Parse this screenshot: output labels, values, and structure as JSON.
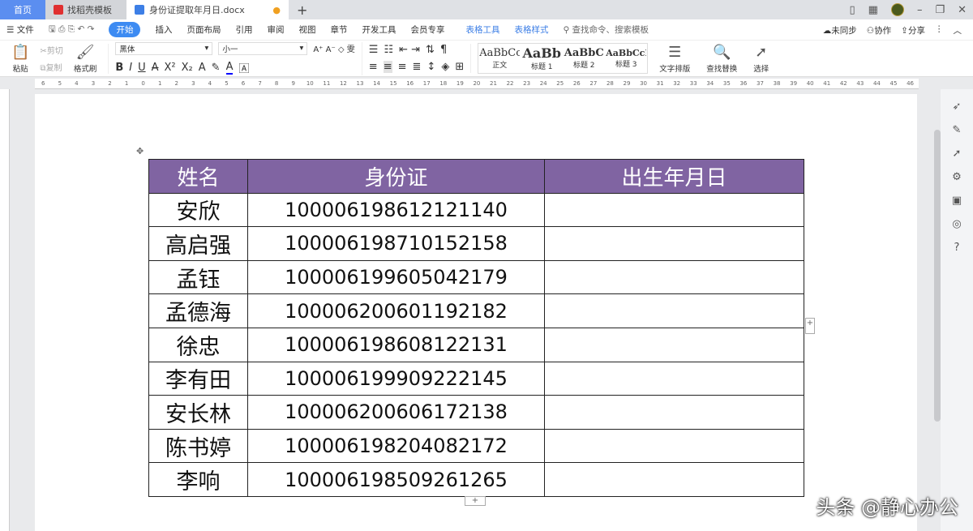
{
  "tabs": [
    {
      "label": "首页"
    },
    {
      "label": "找稻壳模板"
    },
    {
      "label": "身份证提取年月日.docx"
    }
  ],
  "menu": {
    "file": "文件",
    "items": [
      "开始",
      "插入",
      "页面布局",
      "引用",
      "审阅",
      "视图",
      "章节",
      "开发工具",
      "会员专享"
    ],
    "context": [
      "表格工具",
      "表格样式"
    ],
    "search": "查找命令、搜索模板",
    "sync": "未同步",
    "collab": "协作",
    "share": "分享"
  },
  "toolbar": {
    "paste": "粘贴",
    "cut": "剪切",
    "copy": "复制",
    "format_painter": "格式刷",
    "font": "黑体",
    "size": "小一",
    "styles": [
      {
        "preview": "AaBbCcDd",
        "label": "正文"
      },
      {
        "preview": "AaBb",
        "label": "标题 1"
      },
      {
        "preview": "AaBbC",
        "label": "标题 2"
      },
      {
        "preview": "AaBbCcD",
        "label": "标题 3"
      }
    ],
    "text_layout": "文字排版",
    "find_replace": "查找替换",
    "select": "选择"
  },
  "table": {
    "headers": [
      "姓名",
      "身份证",
      "出生年月日"
    ],
    "rows": [
      [
        "安欣",
        "100006198612121140",
        ""
      ],
      [
        "高启强",
        "100006198710152158",
        ""
      ],
      [
        "孟钰",
        "100006199605042179",
        ""
      ],
      [
        "孟德海",
        "100006200601192182",
        ""
      ],
      [
        "徐忠",
        "100006198608122131",
        ""
      ],
      [
        "李有田",
        "100006199909222145",
        ""
      ],
      [
        "安长林",
        "100006200606172138",
        ""
      ],
      [
        "陈书婷",
        "100006198204082172",
        ""
      ],
      [
        "李响",
        "100006198509261265",
        ""
      ]
    ],
    "header_color": "#8064a2"
  },
  "watermark": "头条 @静心办公"
}
